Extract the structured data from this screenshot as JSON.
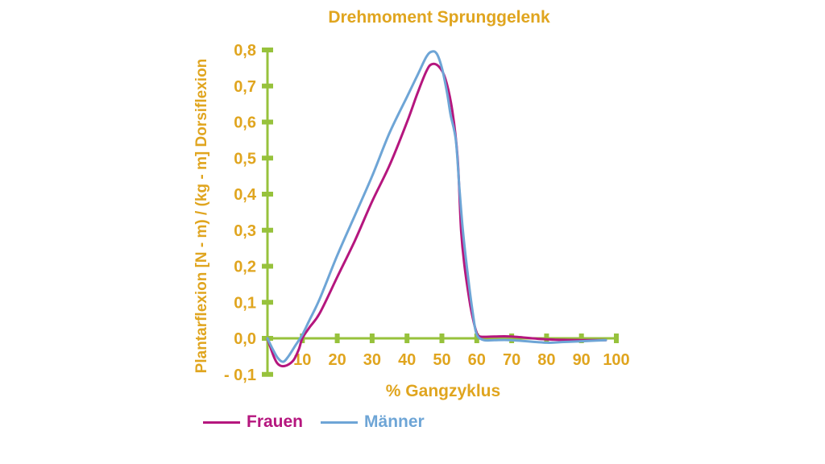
{
  "colors": {
    "title": "#e0a51f",
    "axis": "#97c23c",
    "frauen": "#b5167e",
    "maenner": "#6ea5d6"
  },
  "chart_data": {
    "type": "line",
    "title": "Drehmoment Sprunggelenk",
    "xlabel": "% Gangzyklus",
    "ylabel": "Plantarflexion [N - m) / (kg - m] Dorsiflexion",
    "xlim": [
      0,
      100
    ],
    "ylim": [
      -0.1,
      0.8
    ],
    "xticks": [
      10,
      20,
      30,
      40,
      50,
      60,
      70,
      80,
      90,
      100
    ],
    "xtick_labels": [
      "10",
      "20",
      "30",
      "40",
      "50",
      "60",
      "70",
      "80",
      "90",
      "100"
    ],
    "yticks": [
      -0.1,
      0.0,
      0.1,
      0.2,
      0.3,
      0.4,
      0.5,
      0.6,
      0.7,
      0.8
    ],
    "ytick_labels": [
      "- 0,1",
      "0,0",
      "0,1",
      "0,2",
      "0,3",
      "0,4",
      "0,5",
      "0,6",
      "0,7",
      "0,8"
    ],
    "grid": false,
    "legend_position": "bottom-left",
    "series": [
      {
        "name": "Frauen",
        "color_key": "frauen",
        "points": [
          [
            0,
            0.0
          ],
          [
            2,
            -0.055
          ],
          [
            3.5,
            -0.075
          ],
          [
            5.5,
            -0.075
          ],
          [
            7.5,
            -0.06
          ],
          [
            9,
            -0.03
          ],
          [
            10,
            0.0
          ],
          [
            12,
            0.03
          ],
          [
            15,
            0.07
          ],
          [
            20,
            0.17
          ],
          [
            25,
            0.27
          ],
          [
            30,
            0.38
          ],
          [
            35,
            0.48
          ],
          [
            40,
            0.6
          ],
          [
            43,
            0.68
          ],
          [
            45.5,
            0.74
          ],
          [
            47,
            0.76
          ],
          [
            49,
            0.755
          ],
          [
            51,
            0.72
          ],
          [
            53,
            0.63
          ],
          [
            54.5,
            0.5
          ],
          [
            55.5,
            0.3
          ],
          [
            56.5,
            0.2
          ],
          [
            58,
            0.1
          ],
          [
            59,
            0.05
          ],
          [
            60,
            0.015
          ],
          [
            61,
            0.005
          ],
          [
            65,
            0.005
          ],
          [
            70,
            0.005
          ],
          [
            80,
            -0.003
          ],
          [
            90,
            -0.005
          ],
          [
            97,
            -0.005
          ]
        ]
      },
      {
        "name": "Männer",
        "color_key": "maenner",
        "points": [
          [
            0,
            0.0
          ],
          [
            1.5,
            -0.03
          ],
          [
            3,
            -0.055
          ],
          [
            4.5,
            -0.065
          ],
          [
            6,
            -0.05
          ],
          [
            8,
            -0.02
          ],
          [
            10,
            0.01
          ],
          [
            12,
            0.05
          ],
          [
            15,
            0.11
          ],
          [
            20,
            0.23
          ],
          [
            25,
            0.34
          ],
          [
            30,
            0.45
          ],
          [
            35,
            0.57
          ],
          [
            40,
            0.67
          ],
          [
            43,
            0.73
          ],
          [
            45.5,
            0.78
          ],
          [
            47,
            0.795
          ],
          [
            48.5,
            0.79
          ],
          [
            50,
            0.75
          ],
          [
            51.5,
            0.68
          ],
          [
            52.5,
            0.62
          ],
          [
            54,
            0.55
          ],
          [
            55,
            0.42
          ],
          [
            56,
            0.3
          ],
          [
            57.5,
            0.17
          ],
          [
            59,
            0.06
          ],
          [
            60,
            0.01
          ],
          [
            62,
            -0.005
          ],
          [
            65,
            -0.005
          ],
          [
            70,
            -0.005
          ],
          [
            80,
            -0.012
          ],
          [
            85,
            -0.01
          ],
          [
            90,
            -0.008
          ],
          [
            97,
            -0.005
          ]
        ]
      }
    ]
  }
}
